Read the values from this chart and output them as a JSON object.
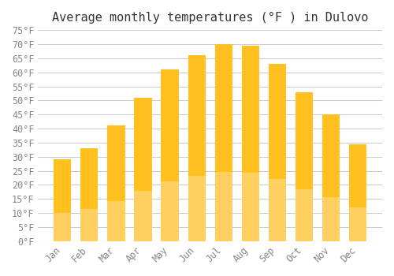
{
  "title": "Average monthly temperatures (°F ) in Dulovo",
  "months": [
    "Jan",
    "Feb",
    "Mar",
    "Apr",
    "May",
    "Jun",
    "Jul",
    "Aug",
    "Sep",
    "Oct",
    "Nov",
    "Dec"
  ],
  "values": [
    29,
    33,
    41,
    51,
    61,
    66,
    70,
    69.5,
    63,
    53,
    45,
    34.5
  ],
  "bar_color_top": "#FFC020",
  "bar_color_bottom": "#FFD060",
  "ylim": [
    0,
    75
  ],
  "yticks": [
    0,
    5,
    10,
    15,
    20,
    25,
    30,
    35,
    40,
    45,
    50,
    55,
    60,
    65,
    70,
    75
  ],
  "background_color": "#ffffff",
  "grid_color": "#cccccc",
  "title_fontsize": 11,
  "tick_fontsize": 8.5,
  "font_family": "monospace"
}
